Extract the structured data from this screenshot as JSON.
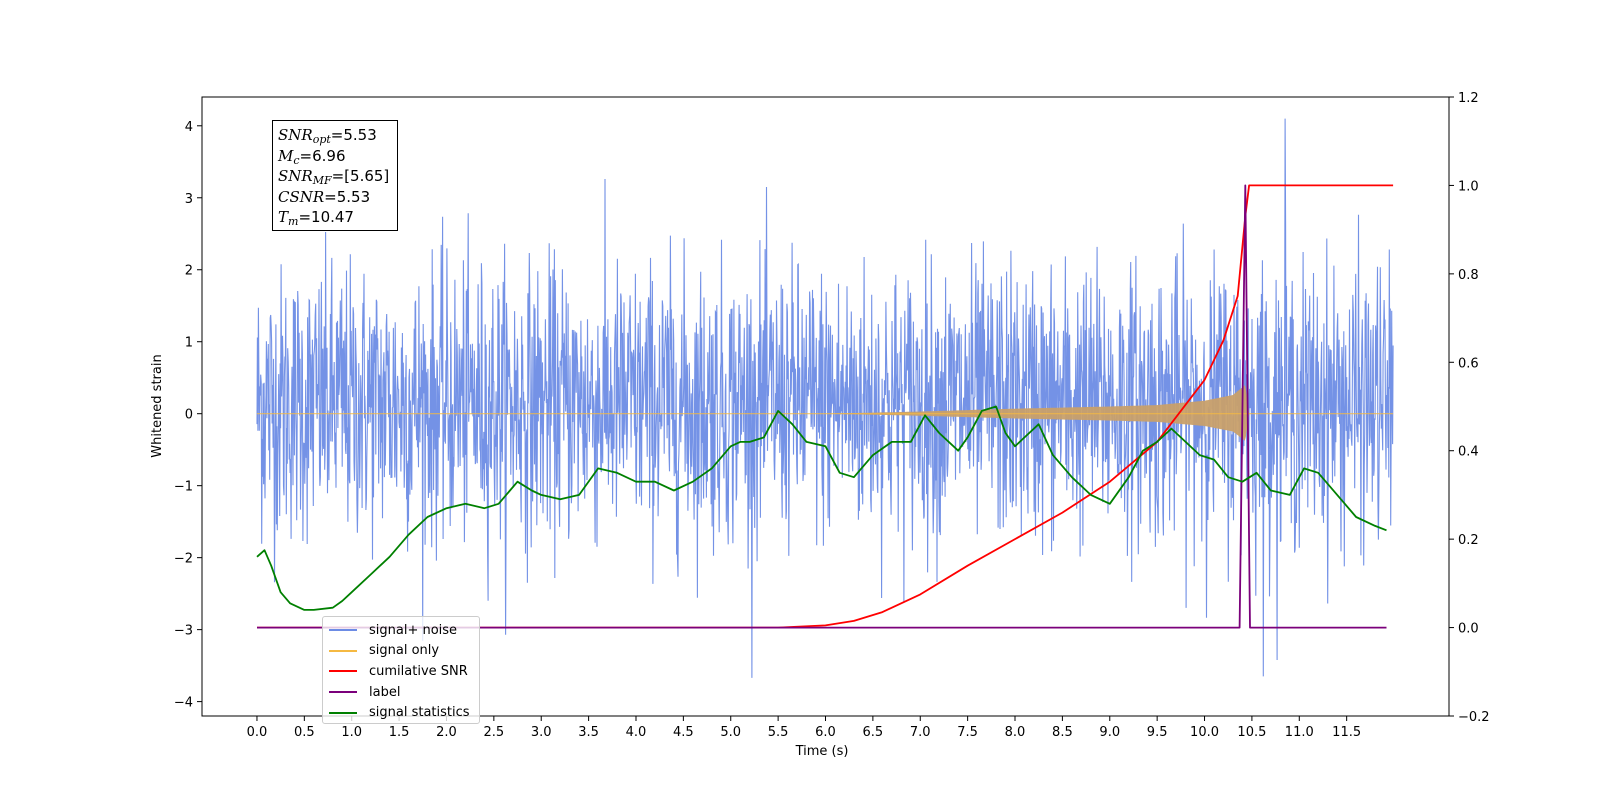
{
  "chart_data": {
    "type": "line",
    "xlabel": "Time (s)",
    "ylabel": "Whitened strain",
    "xlim": [
      -0.58,
      12.58
    ],
    "ylim_left": [
      -4.2,
      4.4
    ],
    "ylim_right": [
      -0.2,
      1.2
    ],
    "x_ticks": [
      0.0,
      0.5,
      1.0,
      1.5,
      2.0,
      2.5,
      3.0,
      3.5,
      4.0,
      4.5,
      5.0,
      5.5,
      6.0,
      6.5,
      7.0,
      7.5,
      8.0,
      8.5,
      9.0,
      9.5,
      10.0,
      10.5,
      11.0,
      11.5
    ],
    "x_tick_labels": [
      "0.0",
      "0.5",
      "1.0",
      "1.5",
      "2.0",
      "2.5",
      "3.0",
      "3.5",
      "4.0",
      "4.5",
      "5.0",
      "5.5",
      "6.0",
      "6.5",
      "7.0",
      "7.5",
      "8.0",
      "8.5",
      "9.0",
      "9.5",
      "10.0",
      "10.5",
      "11.0",
      "11.5"
    ],
    "y_left_ticks": [
      -4,
      -3,
      -2,
      -1,
      0,
      1,
      2,
      3,
      4
    ],
    "y_left_tick_labels": [
      "−4",
      "−3",
      "−2",
      "−1",
      "0",
      "1",
      "2",
      "3",
      "4"
    ],
    "y_right_ticks": [
      -0.2,
      0.0,
      0.2,
      0.4,
      0.6,
      0.8,
      1.0,
      1.2
    ],
    "y_right_tick_labels": [
      "−0.2",
      "0.0",
      "0.2",
      "0.4",
      "0.6",
      "0.8",
      "1.0",
      "1.2"
    ],
    "grid": false,
    "legend_position": "lower-left",
    "series": [
      {
        "name": "signal+ noise",
        "axis": "left",
        "color": "#6d8ce5",
        "kind": "noisy band",
        "x_range": [
          0.0,
          11.99
        ],
        "typical_band": [
          -1.8,
          2.3
        ],
        "peak_max": 4.1,
        "peak_max_x": 10.85,
        "peak_min": -3.65,
        "peak_min_x": 10.62
      },
      {
        "name": "signal only",
        "axis": "left",
        "color": "#f5b942",
        "kind": "chirp",
        "x_range": [
          0.0,
          11.99
        ],
        "chirp_start": 6.0,
        "chirp_peak_x": 10.43,
        "envelope": [
          [
            6.0,
            0.0
          ],
          [
            7.0,
            0.03
          ],
          [
            8.0,
            0.07
          ],
          [
            9.0,
            0.1
          ],
          [
            9.5,
            0.12
          ],
          [
            10.0,
            0.18
          ],
          [
            10.3,
            0.26
          ],
          [
            10.43,
            0.4
          ],
          [
            10.47,
            0.0
          ]
        ]
      },
      {
        "name": "cumilative SNR",
        "axis": "right",
        "color": "#ff0000",
        "x": [
          0.0,
          5.5,
          6.0,
          6.3,
          6.6,
          7.0,
          7.5,
          8.0,
          8.5,
          9.0,
          9.5,
          10.0,
          10.2,
          10.35,
          10.43,
          10.47,
          11.99
        ],
        "y": [
          0.0,
          0.0,
          0.005,
          0.015,
          0.035,
          0.075,
          0.14,
          0.2,
          0.26,
          0.33,
          0.42,
          0.56,
          0.65,
          0.75,
          0.93,
          1.0,
          1.0
        ]
      },
      {
        "name": "label",
        "axis": "right",
        "color": "#7b007b",
        "x": [
          0.0,
          10.37,
          10.37,
          10.43,
          10.48,
          10.48,
          11.92
        ],
        "y": [
          0.0,
          0.0,
          0.0,
          1.0,
          0.0,
          0.0,
          0.0
        ]
      },
      {
        "name": "signal statistics",
        "axis": "right",
        "color": "#008000",
        "x": [
          0.0,
          0.08,
          0.15,
          0.25,
          0.35,
          0.5,
          0.6,
          0.8,
          0.9,
          1.0,
          1.2,
          1.4,
          1.6,
          1.8,
          2.0,
          2.2,
          2.4,
          2.55,
          2.75,
          2.9,
          3.0,
          3.2,
          3.4,
          3.6,
          3.8,
          4.0,
          4.2,
          4.4,
          4.6,
          4.8,
          5.0,
          5.1,
          5.2,
          5.35,
          5.5,
          5.65,
          5.8,
          6.0,
          6.15,
          6.3,
          6.5,
          6.7,
          6.9,
          7.05,
          7.2,
          7.4,
          7.5,
          7.65,
          7.8,
          7.9,
          8.0,
          8.1,
          8.25,
          8.4,
          8.6,
          8.8,
          9.0,
          9.2,
          9.35,
          9.5,
          9.65,
          9.8,
          9.95,
          10.1,
          10.25,
          10.4,
          10.55,
          10.7,
          10.9,
          11.05,
          11.2,
          11.4,
          11.6,
          11.8,
          11.92
        ],
        "y": [
          0.16,
          0.175,
          0.14,
          0.08,
          0.055,
          0.04,
          0.04,
          0.045,
          0.06,
          0.08,
          0.12,
          0.16,
          0.21,
          0.25,
          0.27,
          0.28,
          0.27,
          0.28,
          0.33,
          0.31,
          0.3,
          0.29,
          0.3,
          0.36,
          0.35,
          0.33,
          0.33,
          0.31,
          0.33,
          0.36,
          0.41,
          0.42,
          0.42,
          0.43,
          0.49,
          0.46,
          0.42,
          0.41,
          0.35,
          0.34,
          0.39,
          0.42,
          0.42,
          0.48,
          0.44,
          0.4,
          0.43,
          0.49,
          0.5,
          0.44,
          0.41,
          0.43,
          0.46,
          0.39,
          0.34,
          0.3,
          0.28,
          0.34,
          0.4,
          0.42,
          0.45,
          0.42,
          0.39,
          0.38,
          0.34,
          0.33,
          0.35,
          0.31,
          0.3,
          0.36,
          0.35,
          0.3,
          0.25,
          0.23,
          0.22
        ]
      }
    ],
    "annotation": {
      "lines": [
        {
          "sym": "SNR",
          "sub": "opt",
          "value": "=5.53"
        },
        {
          "sym": "M",
          "sub": "c",
          "value": "=6.96"
        },
        {
          "sym": "SNR",
          "sub": "MF",
          "value": "=[5.65]"
        },
        {
          "sym": "CSNR",
          "sub": "",
          "value": "=5.53"
        },
        {
          "sym": "T",
          "sub": "m",
          "value": "=10.47"
        }
      ]
    },
    "legend_entries": [
      {
        "label": "signal+ noise",
        "color": "#6d8ce5"
      },
      {
        "label": "signal only",
        "color": "#f5b942"
      },
      {
        "label": "cumilative SNR",
        "color": "#ff0000"
      },
      {
        "label": "label",
        "color": "#7b007b"
      },
      {
        "label": "signal statistics",
        "color": "#008000"
      }
    ]
  }
}
